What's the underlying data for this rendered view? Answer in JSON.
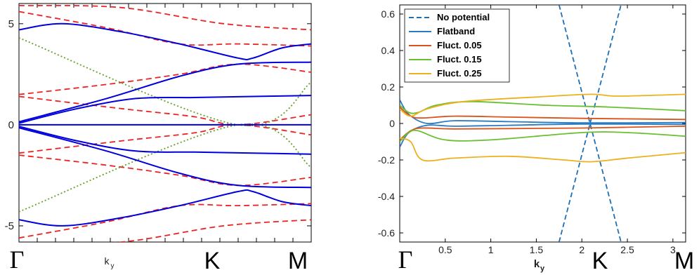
{
  "chart_data": [
    {
      "type": "line",
      "x_tick_labels": [
        "Γ",
        "k_y",
        "K",
        "M"
      ],
      "x_symbols": {
        "gamma": "Γ",
        "k": "k",
        "k_sub": "y",
        "K": "K",
        "M": "M"
      },
      "ylim": [
        -5.8,
        6
      ],
      "y_ticks": [
        -5,
        0,
        5
      ],
      "grid": false,
      "series": [
        {
          "style": "solid",
          "color": "#0000dd",
          "bands": [
            [
              [
                0,
                4.7
              ],
              [
                0.15,
                5.0
              ],
              [
                0.35,
                4.6
              ],
              [
                0.55,
                4.0
              ],
              [
                0.75,
                3.3
              ],
              [
                0.8,
                3.3
              ],
              [
                0.9,
                3.8
              ],
              [
                1,
                4.0
              ]
            ],
            [
              [
                0,
                0.15
              ],
              [
                0.3,
                1.3
              ],
              [
                0.55,
                2.4
              ],
              [
                0.75,
                3.0
              ],
              [
                1,
                3.1
              ]
            ],
            [
              [
                0,
                0.08
              ],
              [
                0.2,
                0.8
              ],
              [
                0.4,
                1.3
              ],
              [
                0.6,
                1.35
              ],
              [
                0.8,
                1.4
              ],
              [
                1,
                1.45
              ]
            ],
            [
              [
                0,
                0
              ],
              [
                1,
                0
              ]
            ],
            [
              [
                0,
                -0.08
              ],
              [
                0.2,
                -0.8
              ],
              [
                0.4,
                -1.3
              ],
              [
                0.6,
                -1.35
              ],
              [
                0.8,
                -1.4
              ],
              [
                1,
                -1.45
              ]
            ],
            [
              [
                0,
                -0.15
              ],
              [
                0.3,
                -1.3
              ],
              [
                0.55,
                -2.4
              ],
              [
                0.75,
                -3.0
              ],
              [
                1,
                -3.1
              ]
            ],
            [
              [
                0,
                -4.7
              ],
              [
                0.15,
                -5.0
              ],
              [
                0.35,
                -4.6
              ],
              [
                0.55,
                -4.0
              ],
              [
                0.75,
                -3.3
              ],
              [
                0.8,
                -3.3
              ],
              [
                0.9,
                -3.8
              ],
              [
                1,
                -4.0
              ]
            ]
          ]
        },
        {
          "style": "dashed",
          "color": "#ee2222",
          "bands": [
            [
              [
                0,
                5.9
              ],
              [
                0.35,
                5.8
              ],
              [
                0.7,
                5.0
              ],
              [
                1,
                4.7
              ]
            ],
            [
              [
                0,
                5.6
              ],
              [
                0.3,
                4.8
              ],
              [
                0.55,
                4.0
              ],
              [
                0.75,
                4.0
              ],
              [
                1,
                3.9
              ]
            ],
            [
              [
                0,
                1.5
              ],
              [
                0.3,
                2.0
              ],
              [
                0.55,
                2.5
              ],
              [
                0.75,
                3.0
              ],
              [
                1,
                2.6
              ]
            ],
            [
              [
                0,
                1.4
              ],
              [
                0.35,
                0.8
              ],
              [
                0.6,
                0.4
              ],
              [
                0.75,
                0.0
              ],
              [
                1,
                0.5
              ]
            ],
            [
              [
                0,
                -1.4
              ],
              [
                0.35,
                -0.8
              ],
              [
                0.6,
                -0.4
              ],
              [
                0.75,
                0.0
              ],
              [
                1,
                -0.5
              ]
            ],
            [
              [
                0,
                -1.5
              ],
              [
                0.3,
                -2.0
              ],
              [
                0.55,
                -2.5
              ],
              [
                0.75,
                -3.0
              ],
              [
                1,
                -2.6
              ]
            ],
            [
              [
                0,
                -5.6
              ],
              [
                0.3,
                -4.8
              ],
              [
                0.55,
                -4.0
              ],
              [
                0.75,
                -4.0
              ],
              [
                1,
                -3.9
              ]
            ],
            [
              [
                0,
                -5.9
              ],
              [
                0.35,
                -5.8
              ],
              [
                0.7,
                -5.0
              ],
              [
                1,
                -4.7
              ]
            ]
          ]
        },
        {
          "style": "dotted",
          "color": "#66a02a",
          "bands": [
            [
              [
                0,
                4.3
              ],
              [
                0.75,
                0
              ],
              [
                1,
                2.1
              ]
            ],
            [
              [
                0,
                -4.3
              ],
              [
                0.75,
                0
              ],
              [
                1,
                -2.1
              ]
            ]
          ]
        }
      ]
    },
    {
      "type": "line",
      "xlabel": "k",
      "xlabel_sub": "y",
      "x_symbols": {
        "gamma": "Γ",
        "K": "K",
        "M": "M"
      },
      "xlim": [
        0,
        3.14
      ],
      "ylim": [
        -0.65,
        0.65
      ],
      "x_ticks": [
        "0.5",
        "1",
        "1.5",
        "2",
        "2.5",
        "3"
      ],
      "y_ticks": [
        "-0.6",
        "-0.4",
        "-0.2",
        "0",
        "0.2",
        "0.4",
        "0.6"
      ],
      "grid": false,
      "legend_position": "top-left",
      "series": [
        {
          "name": "No potential",
          "style": "dashed",
          "color": "#1f6fb4",
          "lines": [
            [
              [
                1.75,
                -0.65
              ],
              [
                2.09,
                0
              ],
              [
                2.43,
                0.65
              ]
            ],
            [
              [
                1.75,
                0.65
              ],
              [
                2.09,
                0
              ],
              [
                2.43,
                -0.65
              ]
            ]
          ]
        },
        {
          "name": "Flatband",
          "style": "solid",
          "color": "#2b7bc0",
          "lines": [
            [
              [
                0,
                0.13
              ],
              [
                0.1,
                0.05
              ],
              [
                0.3,
                0.0
              ],
              [
                0.6,
                0.015
              ],
              [
                1.2,
                0.01
              ],
              [
                2.0,
                0.003
              ],
              [
                3.14,
                0.005
              ]
            ],
            [
              [
                0,
                -0.13
              ],
              [
                0.1,
                -0.05
              ],
              [
                0.3,
                -0.01
              ],
              [
                0.6,
                -0.015
              ],
              [
                1.2,
                -0.01
              ],
              [
                2.0,
                -0.003
              ],
              [
                3.14,
                -0.005
              ]
            ]
          ]
        },
        {
          "name": "Fluct. 0.05",
          "style": "solid",
          "color": "#d9541d",
          "lines": [
            [
              [
                0,
                0.09
              ],
              [
                0.12,
                0.04
              ],
              [
                0.25,
                0.03
              ],
              [
                0.6,
                0.04
              ],
              [
                1.2,
                0.035
              ],
              [
                2.0,
                0.028
              ],
              [
                3.14,
                0.022
              ]
            ],
            [
              [
                0,
                -0.09
              ],
              [
                0.12,
                -0.04
              ],
              [
                0.25,
                -0.025
              ],
              [
                0.6,
                -0.03
              ],
              [
                1.2,
                -0.028
              ],
              [
                2.0,
                -0.025
              ],
              [
                3.14,
                -0.015
              ]
            ]
          ]
        },
        {
          "name": "Fluct. 0.15",
          "style": "solid",
          "color": "#6abf2e",
          "lines": [
            [
              [
                0,
                0.1
              ],
              [
                0.1,
                0.06
              ],
              [
                0.2,
                0.06
              ],
              [
                0.4,
                0.1
              ],
              [
                0.8,
                0.12
              ],
              [
                1.6,
                0.1
              ],
              [
                2.3,
                0.09
              ],
              [
                3.14,
                0.07
              ]
            ],
            [
              [
                0,
                -0.1
              ],
              [
                0.1,
                -0.05
              ],
              [
                0.2,
                -0.04
              ],
              [
                0.5,
                -0.09
              ],
              [
                1.0,
                -0.09
              ],
              [
                2.0,
                -0.05
              ],
              [
                2.5,
                -0.05
              ],
              [
                3.14,
                -0.07
              ]
            ]
          ]
        },
        {
          "name": "Fluct. 0.25",
          "style": "solid",
          "color": "#edb01f",
          "lines": [
            [
              [
                0,
                0.08
              ],
              [
                0.12,
                0.04
              ],
              [
                0.3,
                0.08
              ],
              [
                0.7,
                0.12
              ],
              [
                1.5,
                0.145
              ],
              [
                2.1,
                0.16
              ],
              [
                2.4,
                0.15
              ],
              [
                3.14,
                0.16
              ]
            ],
            [
              [
                0,
                -0.08
              ],
              [
                0.12,
                -0.1
              ],
              [
                0.25,
                -0.2
              ],
              [
                0.6,
                -0.19
              ],
              [
                1.2,
                -0.18
              ],
              [
                1.8,
                -0.2
              ],
              [
                2.1,
                -0.21
              ],
              [
                2.5,
                -0.19
              ],
              [
                3.14,
                -0.16
              ]
            ]
          ]
        }
      ]
    }
  ]
}
